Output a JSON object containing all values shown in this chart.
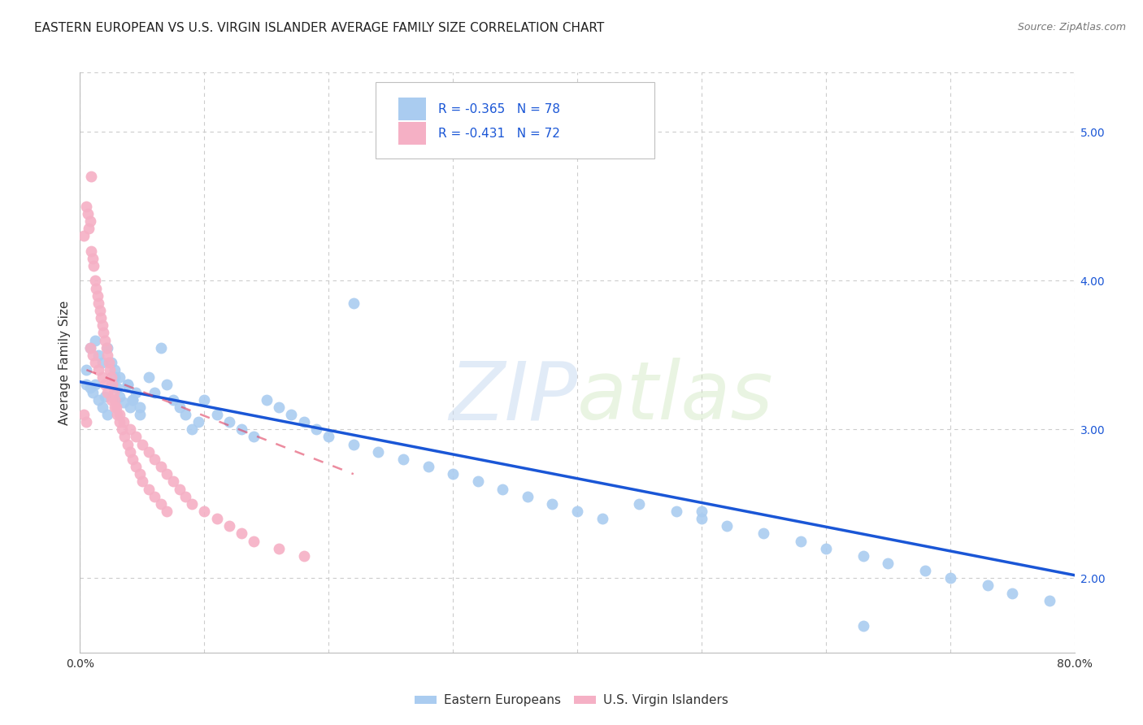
{
  "title": "EASTERN EUROPEAN VS U.S. VIRGIN ISLANDER AVERAGE FAMILY SIZE CORRELATION CHART",
  "source": "Source: ZipAtlas.com",
  "ylabel": "Average Family Size",
  "xlim": [
    0.0,
    0.8
  ],
  "ylim": [
    1.5,
    5.4
  ],
  "xticks": [
    0.0,
    0.1,
    0.2,
    0.3,
    0.4,
    0.5,
    0.6,
    0.7,
    0.8
  ],
  "xticklabels": [
    "0.0%",
    "",
    "",
    "",
    "",
    "",
    "",
    "",
    "80.0%"
  ],
  "yticks_right": [
    2.0,
    3.0,
    4.0,
    5.0
  ],
  "ytick_labels_right": [
    "2.00",
    "3.00",
    "4.00",
    "5.00"
  ],
  "blue_color": "#aaccf0",
  "pink_color": "#f5b0c5",
  "blue_line_color": "#1a56d6",
  "pink_line_color": "#e04060",
  "legend_label1": "Eastern Europeans",
  "legend_label2": "U.S. Virgin Islanders",
  "watermark_zip": "ZIP",
  "watermark_atlas": "atlas",
  "background_color": "#ffffff",
  "grid_color": "#cccccc",
  "title_fontsize": 11,
  "axis_label_fontsize": 11,
  "tick_fontsize": 10,
  "right_tick_color": "#1a56d6",
  "blue_trend_x": [
    0.0,
    0.8
  ],
  "blue_trend_y": [
    3.32,
    2.02
  ],
  "pink_trend_x": [
    -0.01,
    0.22
  ],
  "pink_trend_y": [
    3.45,
    2.7
  ],
  "blue_scatter_x": [
    0.005,
    0.008,
    0.01,
    0.012,
    0.015,
    0.018,
    0.02,
    0.022,
    0.025,
    0.028,
    0.03,
    0.032,
    0.035,
    0.038,
    0.04,
    0.042,
    0.045,
    0.048,
    0.005,
    0.008,
    0.012,
    0.015,
    0.018,
    0.022,
    0.025,
    0.028,
    0.032,
    0.038,
    0.042,
    0.048,
    0.055,
    0.06,
    0.065,
    0.07,
    0.075,
    0.08,
    0.085,
    0.09,
    0.095,
    0.1,
    0.11,
    0.12,
    0.13,
    0.14,
    0.15,
    0.16,
    0.17,
    0.18,
    0.19,
    0.2,
    0.22,
    0.24,
    0.26,
    0.28,
    0.3,
    0.32,
    0.34,
    0.36,
    0.38,
    0.4,
    0.42,
    0.45,
    0.48,
    0.5,
    0.52,
    0.55,
    0.58,
    0.6,
    0.63,
    0.65,
    0.68,
    0.7,
    0.73,
    0.75,
    0.78,
    0.22,
    0.5,
    0.63
  ],
  "blue_scatter_y": [
    3.3,
    3.28,
    3.25,
    3.3,
    3.2,
    3.15,
    3.22,
    3.1,
    3.3,
    3.35,
    3.28,
    3.22,
    3.18,
    3.3,
    3.15,
    3.2,
    3.25,
    3.1,
    3.4,
    3.55,
    3.6,
    3.5,
    3.45,
    3.55,
    3.45,
    3.4,
    3.35,
    3.3,
    3.2,
    3.15,
    3.35,
    3.25,
    3.55,
    3.3,
    3.2,
    3.15,
    3.1,
    3.0,
    3.05,
    3.2,
    3.1,
    3.05,
    3.0,
    2.95,
    3.2,
    3.15,
    3.1,
    3.05,
    3.0,
    2.95,
    2.9,
    2.85,
    2.8,
    2.75,
    2.7,
    2.65,
    2.6,
    2.55,
    2.5,
    2.45,
    2.4,
    2.5,
    2.45,
    2.4,
    2.35,
    2.3,
    2.25,
    2.2,
    2.15,
    2.1,
    2.05,
    2.0,
    1.95,
    1.9,
    1.85,
    3.85,
    2.45,
    1.68
  ],
  "pink_scatter_x": [
    0.003,
    0.005,
    0.006,
    0.007,
    0.008,
    0.009,
    0.01,
    0.011,
    0.012,
    0.013,
    0.014,
    0.015,
    0.016,
    0.017,
    0.018,
    0.019,
    0.02,
    0.021,
    0.022,
    0.023,
    0.024,
    0.025,
    0.026,
    0.027,
    0.028,
    0.029,
    0.03,
    0.032,
    0.034,
    0.036,
    0.038,
    0.04,
    0.042,
    0.045,
    0.048,
    0.05,
    0.055,
    0.06,
    0.065,
    0.07,
    0.008,
    0.01,
    0.012,
    0.015,
    0.018,
    0.02,
    0.022,
    0.025,
    0.028,
    0.032,
    0.035,
    0.04,
    0.045,
    0.05,
    0.055,
    0.06,
    0.065,
    0.07,
    0.075,
    0.08,
    0.085,
    0.09,
    0.1,
    0.11,
    0.12,
    0.13,
    0.14,
    0.16,
    0.18,
    0.009,
    0.003,
    0.005
  ],
  "pink_scatter_y": [
    4.3,
    4.5,
    4.45,
    4.35,
    4.4,
    4.2,
    4.15,
    4.1,
    4.0,
    3.95,
    3.9,
    3.85,
    3.8,
    3.75,
    3.7,
    3.65,
    3.6,
    3.55,
    3.5,
    3.45,
    3.4,
    3.35,
    3.3,
    3.25,
    3.2,
    3.15,
    3.1,
    3.05,
    3.0,
    2.95,
    2.9,
    2.85,
    2.8,
    2.75,
    2.7,
    2.65,
    2.6,
    2.55,
    2.5,
    2.45,
    3.55,
    3.5,
    3.45,
    3.4,
    3.35,
    3.3,
    3.25,
    3.2,
    3.15,
    3.1,
    3.05,
    3.0,
    2.95,
    2.9,
    2.85,
    2.8,
    2.75,
    2.7,
    2.65,
    2.6,
    2.55,
    2.5,
    2.45,
    2.4,
    2.35,
    2.3,
    2.25,
    2.2,
    2.15,
    4.7,
    3.1,
    3.05
  ]
}
